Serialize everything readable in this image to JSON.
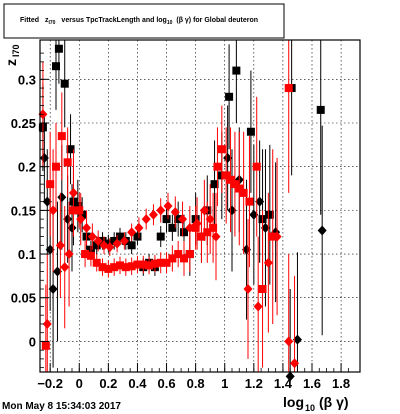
{
  "title": {
    "prefix": "Fitted",
    "z": "z",
    "z_sub": "I70",
    "middle": "versus TpcTrackLength and log",
    "log_sub": "10",
    "suffix": "(β γ) for Global deuteron"
  },
  "ylabel": {
    "main": "z",
    "sub": "I70"
  },
  "xlabel": {
    "main_prefix": "log",
    "sub": "10",
    "main_suffix": "(β γ)"
  },
  "footer": "Mon May  8 15:34:03 2017",
  "colors": {
    "series_black": "#000000",
    "series_red": "#ff0000",
    "grid": "#000000",
    "frame": "#000000"
  },
  "chart_data": {
    "type": "scatter",
    "grid": true,
    "xlim": [
      -0.27,
      1.93
    ],
    "ylim": [
      -0.035,
      0.345
    ],
    "x_ticks": [
      {
        "v": -0.2,
        "label": "−0.2"
      },
      {
        "v": 0,
        "label": "0"
      },
      {
        "v": 0.2,
        "label": "0.2"
      },
      {
        "v": 0.4,
        "label": "0.4"
      },
      {
        "v": 0.6,
        "label": "0.6"
      },
      {
        "v": 0.8,
        "label": "0.8"
      },
      {
        "v": 1,
        "label": "1"
      },
      {
        "v": 1.2,
        "label": "1.2"
      },
      {
        "v": 1.4,
        "label": "1.4"
      },
      {
        "v": 1.6,
        "label": "1.6"
      },
      {
        "v": 1.8,
        "label": "1.8"
      }
    ],
    "y_ticks": [
      {
        "v": 0,
        "label": "0"
      },
      {
        "v": 0.05,
        "label": "0.05"
      },
      {
        "v": 0.1,
        "label": "0.1"
      },
      {
        "v": 0.15,
        "label": "0.15"
      },
      {
        "v": 0.2,
        "label": "0.2"
      },
      {
        "v": 0.25,
        "label": "0.25"
      },
      {
        "v": 0.3,
        "label": "0.3"
      }
    ],
    "series": [
      {
        "marker": "diamond",
        "color": "#000000",
        "points": [
          [
            -0.24,
            0.21,
            0.05
          ],
          [
            -0.22,
            0.16,
            0.06
          ],
          [
            -0.2,
            0.105,
            0.07
          ],
          [
            -0.18,
            0.06,
            0.09
          ],
          [
            -0.15,
            0.08,
            0.08
          ],
          [
            -0.12,
            0.165,
            0.06
          ],
          [
            -0.08,
            0.14,
            0.05
          ],
          [
            -0.05,
            0.13,
            0.05
          ],
          [
            1.02,
            0.21,
            0.06
          ],
          [
            1.05,
            0.15,
            0.07
          ],
          [
            1.1,
            0.185,
            0.06
          ],
          [
            1.15,
            0.105,
            0.08
          ],
          [
            1.2,
            0.145,
            0.08
          ],
          [
            1.24,
            0.16,
            0.07
          ],
          [
            1.28,
            0.13,
            0.09
          ],
          [
            1.35,
            0.125,
            0.08
          ],
          [
            1.45,
            -0.04,
            0.1
          ],
          [
            1.5,
            0.002,
            0.1
          ],
          [
            1.67,
            0.127,
            0.12
          ]
        ]
      },
      {
        "marker": "square",
        "color": "#000000",
        "points": [
          [
            -0.25,
            0.245,
            0.05
          ],
          [
            -0.16,
            0.315,
            0.05
          ],
          [
            -0.14,
            0.335,
            0.04
          ],
          [
            -0.1,
            0.295,
            0.05
          ],
          [
            -0.06,
            0.22,
            0.04
          ],
          [
            -0.04,
            0.16,
            0.05
          ],
          [
            -0.01,
            0.155,
            0.03
          ],
          [
            0.02,
            0.145,
            0.02
          ],
          [
            0.05,
            0.12,
            0.015
          ],
          [
            0.08,
            0.105,
            0.01
          ],
          [
            0.12,
            0.11,
            0.01
          ],
          [
            0.16,
            0.115,
            0.01
          ],
          [
            0.2,
            0.112,
            0.01
          ],
          [
            0.24,
            0.115,
            0.01
          ],
          [
            0.28,
            0.12,
            0.01
          ],
          [
            0.32,
            0.115,
            0.01
          ],
          [
            0.36,
            0.11,
            0.01
          ],
          [
            0.4,
            0.12,
            0.01
          ],
          [
            0.44,
            0.085,
            0.01
          ],
          [
            0.48,
            0.09,
            0.01
          ],
          [
            0.52,
            0.085,
            0.01
          ],
          [
            0.56,
            0.12,
            0.012
          ],
          [
            0.6,
            0.14,
            0.015
          ],
          [
            0.64,
            0.13,
            0.015
          ],
          [
            0.68,
            0.14,
            0.02
          ],
          [
            0.72,
            0.125,
            0.02
          ],
          [
            0.76,
            0.1,
            0.025
          ],
          [
            0.8,
            0.14,
            0.03
          ],
          [
            0.84,
            0.12,
            0.03
          ],
          [
            0.88,
            0.15,
            0.04
          ],
          [
            0.93,
            0.18,
            0.05
          ],
          [
            0.98,
            0.19,
            0.05
          ],
          [
            1.03,
            0.28,
            0.06
          ],
          [
            1.08,
            0.31,
            0.06
          ],
          [
            1.18,
            0.24,
            0.07
          ],
          [
            1.26,
            0.14,
            0.08
          ],
          [
            1.31,
            0.145,
            0.08
          ],
          [
            1.46,
            0.29,
            0.1
          ],
          [
            1.66,
            0.265,
            0.12
          ]
        ]
      },
      {
        "marker": "diamond",
        "color": "#ff0000",
        "points": [
          [
            -0.25,
            0.26,
            0.06
          ],
          [
            -0.22,
            0.02,
            0.08
          ],
          [
            -0.18,
            0.15,
            0.07
          ],
          [
            -0.13,
            0.11,
            0.06
          ],
          [
            -0.1,
            0.085,
            0.07
          ],
          [
            -0.07,
            0.1,
            0.06
          ],
          [
            -0.04,
            0.17,
            0.05
          ],
          [
            0.01,
            0.14,
            0.03
          ],
          [
            0.05,
            0.13,
            0.02
          ],
          [
            0.09,
            0.12,
            0.015
          ],
          [
            0.13,
            0.115,
            0.012
          ],
          [
            0.17,
            0.11,
            0.01
          ],
          [
            0.21,
            0.108,
            0.01
          ],
          [
            0.26,
            0.112,
            0.01
          ],
          [
            0.31,
            0.115,
            0.01
          ],
          [
            0.36,
            0.125,
            0.01
          ],
          [
            0.41,
            0.13,
            0.012
          ],
          [
            0.46,
            0.14,
            0.012
          ],
          [
            0.51,
            0.145,
            0.012
          ],
          [
            0.56,
            0.15,
            0.014
          ],
          [
            0.61,
            0.155,
            0.015
          ],
          [
            0.66,
            0.148,
            0.018
          ],
          [
            0.71,
            0.14,
            0.02
          ],
          [
            0.76,
            0.13,
            0.025
          ],
          [
            0.81,
            0.135,
            0.03
          ],
          [
            0.86,
            0.15,
            0.035
          ],
          [
            0.9,
            0.14,
            0.04
          ],
          [
            0.94,
            0.12,
            0.05
          ],
          [
            1.16,
            0.06,
            0.08
          ],
          [
            1.23,
            0.04,
            0.08
          ],
          [
            1.3,
            0.09,
            0.08
          ],
          [
            1.36,
            0.12,
            0.09
          ],
          [
            1.44,
            0.0,
            0.1
          ],
          [
            1.48,
            -0.025,
            0.1
          ]
        ]
      },
      {
        "marker": "square",
        "color": "#ff0000",
        "points": [
          [
            -0.23,
            -0.005,
            0.07
          ],
          [
            -0.2,
            0.18,
            0.06
          ],
          [
            -0.16,
            0.2,
            0.05
          ],
          [
            -0.12,
            0.235,
            0.05
          ],
          [
            -0.08,
            0.205,
            0.04
          ],
          [
            -0.04,
            0.15,
            0.03
          ],
          [
            0.0,
            0.15,
            0.02
          ],
          [
            0.04,
            0.1,
            0.015
          ],
          [
            0.08,
            0.098,
            0.012
          ],
          [
            0.12,
            0.09,
            0.01
          ],
          [
            0.16,
            0.085,
            0.01
          ],
          [
            0.2,
            0.083,
            0.01
          ],
          [
            0.24,
            0.085,
            0.01
          ],
          [
            0.28,
            0.087,
            0.01
          ],
          [
            0.32,
            0.085,
            0.01
          ],
          [
            0.36,
            0.086,
            0.01
          ],
          [
            0.4,
            0.088,
            0.01
          ],
          [
            0.44,
            0.088,
            0.01
          ],
          [
            0.48,
            0.087,
            0.01
          ],
          [
            0.52,
            0.089,
            0.01
          ],
          [
            0.56,
            0.09,
            0.012
          ],
          [
            0.6,
            0.09,
            0.012
          ],
          [
            0.64,
            0.095,
            0.015
          ],
          [
            0.68,
            0.1,
            0.015
          ],
          [
            0.72,
            0.095,
            0.02
          ],
          [
            0.76,
            0.1,
            0.02
          ],
          [
            0.8,
            0.13,
            0.025
          ],
          [
            0.84,
            0.12,
            0.03
          ],
          [
            0.88,
            0.125,
            0.035
          ],
          [
            0.92,
            0.13,
            0.04
          ],
          [
            0.95,
            0.2,
            0.045
          ],
          [
            0.98,
            0.22,
            0.05
          ],
          [
            1.01,
            0.19,
            0.055
          ],
          [
            1.04,
            0.185,
            0.06
          ],
          [
            1.07,
            0.18,
            0.06
          ],
          [
            1.1,
            0.175,
            0.065
          ],
          [
            1.13,
            0.17,
            0.07
          ],
          [
            1.17,
            0.16,
            0.075
          ],
          [
            1.22,
            0.2,
            0.08
          ],
          [
            1.26,
            0.06,
            0.09
          ],
          [
            1.33,
            0.12,
            0.1
          ],
          [
            1.44,
            0.29,
            0.12
          ]
        ]
      }
    ]
  }
}
